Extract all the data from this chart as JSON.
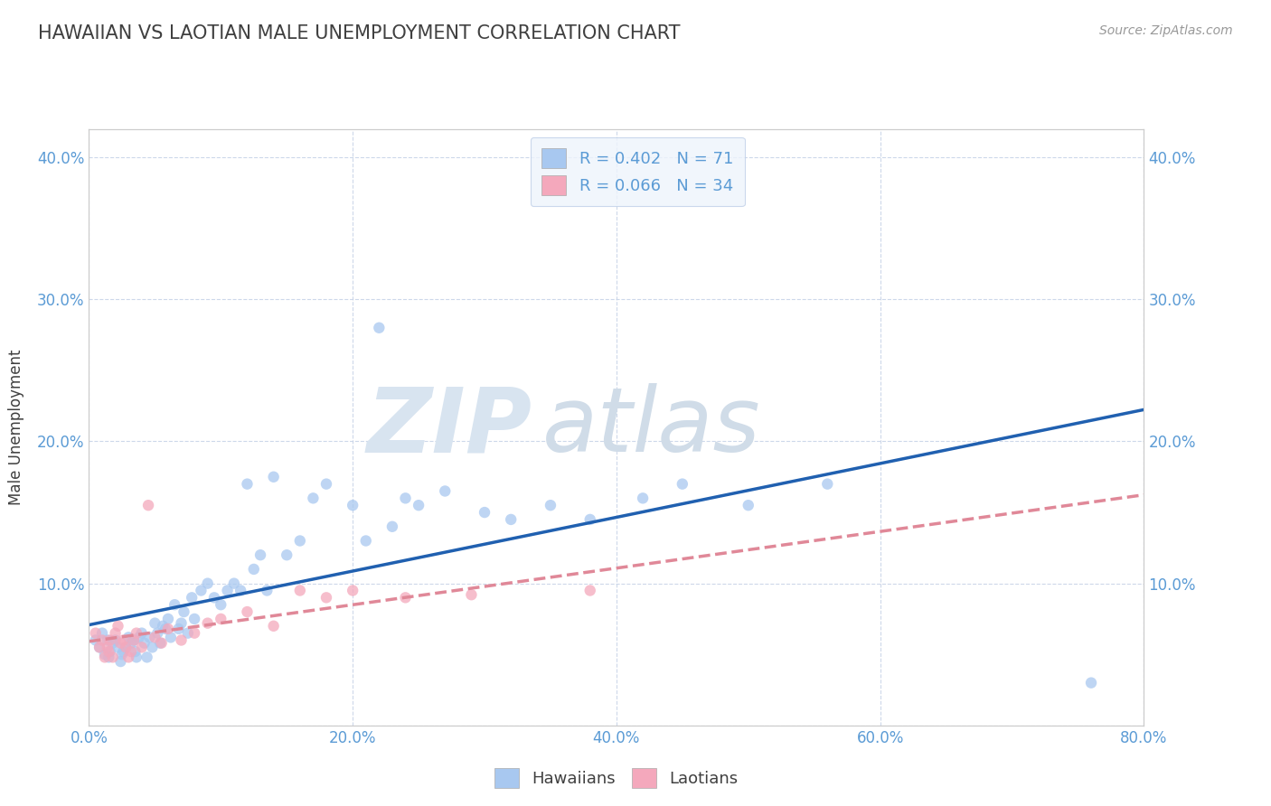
{
  "title": "HAWAIIAN VS LAOTIAN MALE UNEMPLOYMENT CORRELATION CHART",
  "source": "Source: ZipAtlas.com",
  "ylabel": "Male Unemployment",
  "legend_bottom": [
    "Hawaiians",
    "Laotians"
  ],
  "hawaiian_R": 0.402,
  "hawaiian_N": 71,
  "laotian_R": 0.066,
  "laotian_N": 34,
  "hawaiian_color": "#a8c8f0",
  "laotian_color": "#f4a8bc",
  "hawaiian_line_color": "#2060b0",
  "laotian_line_color": "#e08898",
  "background_color": "#ffffff",
  "grid_color": "#c8d4e8",
  "watermark_zip": "ZIP",
  "watermark_atlas": "atlas",
  "watermark_color_zip": "#d8e4f0",
  "watermark_color_atlas": "#d0dce8",
  "title_color": "#404040",
  "tick_label_color": "#5b9bd5",
  "xlim": [
    0.0,
    0.8
  ],
  "ylim": [
    0.0,
    0.42
  ],
  "yticks": [
    0.0,
    0.1,
    0.2,
    0.3,
    0.4
  ],
  "xticks": [
    0.0,
    0.2,
    0.4,
    0.6,
    0.8
  ],
  "hawaiian_x": [
    0.005,
    0.008,
    0.01,
    0.012,
    0.014,
    0.015,
    0.016,
    0.018,
    0.02,
    0.022,
    0.024,
    0.025,
    0.026,
    0.028,
    0.03,
    0.032,
    0.034,
    0.035,
    0.036,
    0.038,
    0.04,
    0.042,
    0.044,
    0.046,
    0.048,
    0.05,
    0.052,
    0.054,
    0.056,
    0.058,
    0.06,
    0.062,
    0.065,
    0.068,
    0.07,
    0.072,
    0.075,
    0.078,
    0.08,
    0.085,
    0.09,
    0.095,
    0.1,
    0.105,
    0.11,
    0.115,
    0.12,
    0.125,
    0.13,
    0.135,
    0.14,
    0.15,
    0.16,
    0.17,
    0.18,
    0.2,
    0.21,
    0.22,
    0.23,
    0.24,
    0.25,
    0.27,
    0.3,
    0.32,
    0.35,
    0.38,
    0.42,
    0.45,
    0.5,
    0.56,
    0.76
  ],
  "hawaiian_y": [
    0.06,
    0.055,
    0.065,
    0.05,
    0.06,
    0.048,
    0.052,
    0.058,
    0.06,
    0.055,
    0.045,
    0.05,
    0.052,
    0.055,
    0.062,
    0.058,
    0.06,
    0.052,
    0.048,
    0.062,
    0.065,
    0.058,
    0.048,
    0.062,
    0.055,
    0.072,
    0.065,
    0.058,
    0.07,
    0.068,
    0.075,
    0.062,
    0.085,
    0.068,
    0.072,
    0.08,
    0.065,
    0.09,
    0.075,
    0.095,
    0.1,
    0.09,
    0.085,
    0.095,
    0.1,
    0.095,
    0.17,
    0.11,
    0.12,
    0.095,
    0.175,
    0.12,
    0.13,
    0.16,
    0.17,
    0.155,
    0.13,
    0.28,
    0.14,
    0.16,
    0.155,
    0.165,
    0.15,
    0.145,
    0.155,
    0.145,
    0.16,
    0.17,
    0.155,
    0.17,
    0.03
  ],
  "laotian_x": [
    0.005,
    0.008,
    0.01,
    0.012,
    0.014,
    0.015,
    0.016,
    0.018,
    0.02,
    0.022,
    0.024,
    0.026,
    0.028,
    0.03,
    0.032,
    0.034,
    0.036,
    0.04,
    0.045,
    0.05,
    0.055,
    0.06,
    0.07,
    0.08,
    0.09,
    0.1,
    0.12,
    0.14,
    0.16,
    0.18,
    0.2,
    0.24,
    0.29,
    0.38
  ],
  "laotian_y": [
    0.065,
    0.055,
    0.06,
    0.048,
    0.055,
    0.052,
    0.06,
    0.048,
    0.065,
    0.07,
    0.058,
    0.06,
    0.055,
    0.048,
    0.052,
    0.06,
    0.065,
    0.055,
    0.155,
    0.062,
    0.058,
    0.068,
    0.06,
    0.065,
    0.072,
    0.075,
    0.08,
    0.07,
    0.095,
    0.09,
    0.095,
    0.09,
    0.092,
    0.095
  ],
  "legend_box_color": "#eef4fc",
  "legend_border_color": "#c0d0e8",
  "scatter_alpha": 0.75,
  "scatter_size": 80,
  "line_width": 2.5
}
